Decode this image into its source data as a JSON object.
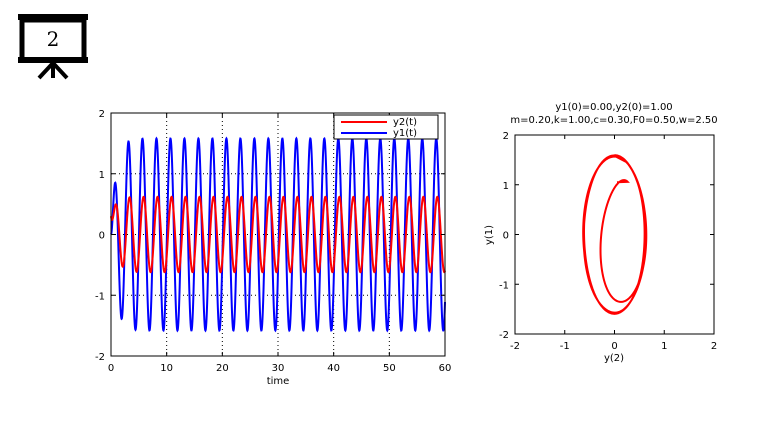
{
  "slide": {
    "number": "2"
  },
  "chart_data": [
    {
      "type": "line",
      "title": "",
      "xlabel": "time",
      "ylabel": "",
      "xlim": [
        0,
        60
      ],
      "ylim": [
        -2,
        2
      ],
      "xticks": [
        "0",
        "10",
        "20",
        "30",
        "40",
        "50",
        "60"
      ],
      "yticks": [
        "2",
        "1",
        "0",
        "-1",
        "-2"
      ],
      "grid": true,
      "legend_position": "top-right",
      "series": [
        {
          "name": "y2(t)",
          "color": "#ff0000",
          "amplitude": 0.62,
          "period": 2.513,
          "t0": 0.2,
          "start": 0.3
        },
        {
          "name": "y1(t)",
          "color": "#0000ff",
          "amplitude": 1.58,
          "period": 2.513,
          "t0": 0.0,
          "start": 0.0
        }
      ]
    },
    {
      "type": "line",
      "title_lines": [
        "y1(0)=0.00,y2(0)=1.00",
        "m=0.20,k=1.00,c=0.30,F0=0.50,w=2.50"
      ],
      "xlabel": "y(2)",
      "ylabel": "y(1)",
      "xlim": [
        -2,
        2
      ],
      "ylim": [
        -2,
        2
      ],
      "xticks": [
        "-2",
        "-1",
        "0",
        "1",
        "2"
      ],
      "yticks": [
        "2",
        "1",
        "0",
        "-1",
        "-2"
      ],
      "grid": false,
      "series": [
        {
          "name": "",
          "color": "#ff0000",
          "limit_cycle": {
            "x_amp": 0.62,
            "y_amp": 1.58
          },
          "start": [
            0.05,
            1.05
          ]
        }
      ]
    }
  ],
  "colors": {
    "plot_line_red": "#ff0000",
    "plot_line_blue": "#0000ff",
    "icon": "#000000"
  }
}
